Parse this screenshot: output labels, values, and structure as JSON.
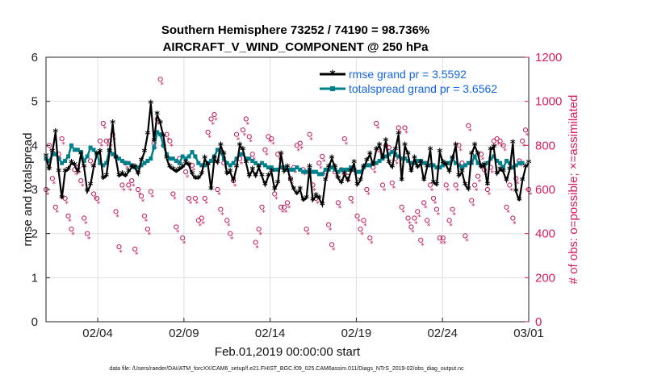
{
  "chart_data": {
    "type": "line",
    "title": "Southern Hemisphere 73252 / 74190 = 98.736%",
    "subtitle": "AIRCRAFT_V_WIND_COMPONENT @ 250 hPa",
    "xlabel": "Feb.01,2019 00:00:00 start",
    "ylabel": "rmse and totalspread",
    "ylabel_right": "# of obs: o=possible; ×=assimilated",
    "xlim": [
      0,
      28
    ],
    "ylim": [
      0,
      6
    ],
    "ylim_right": [
      0,
      1200
    ],
    "x_ticks": [
      3,
      8,
      13,
      18,
      23,
      28
    ],
    "x_tick_labels": [
      "02/04",
      "02/09",
      "02/14",
      "02/19",
      "02/24",
      "03/01"
    ],
    "y_ticks": [
      "0",
      "1",
      "2",
      "3",
      "4",
      "5",
      "6"
    ],
    "y_ticks_right": [
      "0",
      "200",
      "400",
      "600",
      "800",
      "1000",
      "1200"
    ],
    "legend": [
      {
        "label": "rmse grand pr = 3.5592",
        "color": "#000000"
      },
      {
        "label": "totalspread grand pr = 3.6562",
        "color": "#00808a"
      }
    ],
    "series": [
      {
        "name": "rmse",
        "color": "#000000",
        "values": [
          3.75,
          3.45,
          3.85,
          4.3,
          3.4,
          2.8,
          3.4,
          3.45,
          3.6,
          3.55,
          3.4,
          3.8,
          3.5,
          2.95,
          3.1,
          3.5,
          3.8,
          3.85,
          3.25,
          3.3,
          3.85,
          4.5,
          3.7,
          3.3,
          3.35,
          3.3,
          3.4,
          3.5,
          3.5,
          3.35,
          3.65,
          3.85,
          4.25,
          4.95,
          4.1,
          4.7,
          4.5,
          4.2,
          3.7,
          3.5,
          3.45,
          3.4,
          3.45,
          3.5,
          3.6,
          3.55,
          3.35,
          3.25,
          3.25,
          3.35,
          3.7,
          3.55,
          3.0,
          3.7,
          3.6,
          4.0,
          3.8,
          3.35,
          3.4,
          3.2,
          3.5,
          4.0,
          3.9,
          3.6,
          3.3,
          3.45,
          3.3,
          3.5,
          3.3,
          3.1,
          3.3,
          3.4,
          3.0,
          3.15,
          3.8,
          3.4,
          3.5,
          3.2,
          3.0,
          2.9,
          3.0,
          2.75,
          2.8,
          3.5,
          2.75,
          2.85,
          2.8,
          2.65,
          3.2,
          3.5,
          3.7,
          3.5,
          3.25,
          3.15,
          3.35,
          3.2,
          3.4,
          3.6,
          3.1,
          3.2,
          3.5,
          3.65,
          3.8,
          3.55,
          3.9,
          4.0,
          3.7,
          4.1,
          3.6,
          3.5,
          3.9,
          4.25,
          3.2,
          4.0,
          3.8,
          3.4,
          3.7,
          3.5,
          3.6,
          3.2,
          3.5,
          3.9,
          3.15,
          3.1,
          3.85,
          3.6,
          3.55,
          3.4,
          3.7,
          4.0,
          3.3,
          3.4,
          3.1,
          3.0,
          3.8,
          4.0,
          3.8,
          3.5,
          3.55,
          3.1,
          3.9,
          3.95,
          3.35,
          3.45,
          3.4,
          3.2,
          3.45,
          4.05,
          2.95,
          2.75,
          3.2,
          3.5,
          3.6
        ]
      },
      {
        "name": "totalspread",
        "color": "#00808a",
        "values": [
          3.7,
          3.65,
          3.8,
          3.8,
          3.7,
          3.6,
          3.65,
          3.75,
          4.0,
          3.9,
          3.9,
          3.85,
          3.65,
          3.75,
          3.95,
          3.9,
          3.8,
          3.6,
          3.55,
          3.6,
          3.9,
          3.8,
          3.75,
          3.7,
          3.65,
          3.6,
          3.6,
          3.55,
          3.5,
          3.5,
          3.55,
          3.6,
          3.65,
          3.7,
          3.95,
          4.3,
          4.25,
          4.0,
          3.8,
          3.7,
          3.7,
          3.65,
          3.6,
          3.75,
          3.7,
          3.75,
          3.85,
          3.75,
          3.6,
          3.55,
          3.55,
          3.6,
          3.65,
          3.75,
          3.9,
          3.85,
          3.7,
          3.6,
          3.55,
          3.6,
          3.7,
          3.8,
          3.8,
          3.7,
          3.7,
          3.65,
          3.6,
          3.55,
          3.6,
          3.55,
          3.5,
          3.5,
          3.45,
          3.45,
          3.5,
          3.5,
          3.45,
          3.45,
          3.45,
          3.5,
          3.45,
          3.4,
          3.4,
          3.45,
          3.4,
          3.4,
          3.35,
          3.35,
          3.45,
          3.45,
          3.5,
          3.45,
          3.4,
          3.45,
          3.45,
          3.45,
          3.5,
          3.45,
          3.4,
          3.4,
          3.5,
          3.55,
          3.55,
          3.6,
          3.6,
          3.65,
          3.7,
          3.75,
          3.8,
          3.85,
          3.8,
          3.75,
          3.7,
          3.7,
          3.65,
          3.6,
          3.6,
          3.65,
          3.65,
          3.6,
          3.6,
          3.55,
          3.55,
          3.5,
          3.5,
          3.55,
          3.6,
          3.6,
          3.7,
          3.6,
          3.55,
          3.5,
          3.55,
          3.6,
          3.6,
          3.75,
          3.6,
          3.55,
          3.55,
          3.6,
          3.7,
          3.75,
          3.65,
          3.6,
          3.5,
          3.65,
          3.6,
          3.5,
          3.55,
          3.6,
          3.6
        ]
      },
      {
        "name": "obs_possible",
        "color": "#c2185b",
        "axis": "right",
        "values": [
          600,
          800,
          650,
          520,
          760,
          830,
          560,
          480,
          420,
          690,
          700,
          640,
          470,
          400,
          730,
          580,
          560,
          820,
          900,
          820,
          820,
          850,
          500,
          340,
          620,
          720,
          620,
          640,
          330,
          600,
          570,
          480,
          420,
          590,
          810,
          920,
          1100,
          800,
          850,
          820,
          580,
          430,
          740,
          380,
          680,
          560,
          710,
          560,
          460,
          470,
          560,
          860,
          920,
          940,
          600,
          510,
          720,
          460,
          400,
          640,
          850,
          740,
          870,
          920,
          840,
          760,
          360,
          420,
          520,
          780,
          840,
          830,
          580,
          760,
          520,
          520,
          540,
          650,
          700,
          800,
          810,
          690,
          420,
          850,
          620,
          560,
          720,
          750,
          680,
          440,
          350,
          680,
          540,
          690,
          830,
          660,
          560,
          690,
          480,
          420,
          460,
          600,
          380,
          700,
          900,
          780,
          620,
          800,
          790,
          630,
          740,
          880,
          520,
          880,
          470,
          430,
          470,
          500,
          370,
          540,
          460,
          620,
          560,
          510,
          380,
          380,
          620,
          460,
          510,
          620,
          800,
          720,
          390,
          890,
          550,
          620,
          660,
          760,
          690,
          600,
          700,
          820,
          830,
          820,
          800,
          520,
          620,
          470,
          650,
          730,
          820,
          870,
          600
        ]
      },
      {
        "name": "obs_assimilated",
        "color": "#c2185b",
        "axis": "right",
        "values": [
          590,
          790,
          640,
          510,
          750,
          820,
          550,
          470,
          410,
          680,
          690,
          630,
          460,
          390,
          720,
          570,
          550,
          810,
          890,
          810,
          810,
          840,
          490,
          330,
          610,
          710,
          610,
          630,
          320,
          590,
          560,
          470,
          410,
          580,
          800,
          910,
          1090,
          790,
          840,
          810,
          570,
          420,
          730,
          370,
          670,
          550,
          700,
          550,
          450,
          460,
          550,
          850,
          910,
          930,
          590,
          500,
          710,
          450,
          390,
          630,
          840,
          730,
          860,
          910,
          830,
          750,
          350,
          410,
          510,
          770,
          830,
          820,
          570,
          750,
          510,
          510,
          530,
          640,
          690,
          790,
          800,
          680,
          410,
          840,
          610,
          550,
          710,
          740,
          670,
          430,
          340,
          670,
          530,
          680,
          820,
          650,
          550,
          680,
          470,
          410,
          450,
          590,
          370,
          690,
          890,
          770,
          610,
          790,
          780,
          620,
          730,
          870,
          510,
          870,
          460,
          420,
          460,
          490,
          360,
          530,
          450,
          610,
          550,
          500,
          370,
          370,
          610,
          450,
          500,
          610,
          790,
          710,
          380,
          880,
          540,
          610,
          650,
          750,
          680,
          590,
          690,
          810,
          820,
          810,
          790,
          510,
          610,
          460,
          640,
          720,
          810,
          860,
          590
        ]
      }
    ]
  },
  "footnote": "data file: /Users/raeder/DAI/ATM_forcXX/CAM6_setup/f.e21.FHIST_BGC.f09_025.CAM6assim.011/Diags_NTrS_2019-02/obs_diag_output.nc"
}
